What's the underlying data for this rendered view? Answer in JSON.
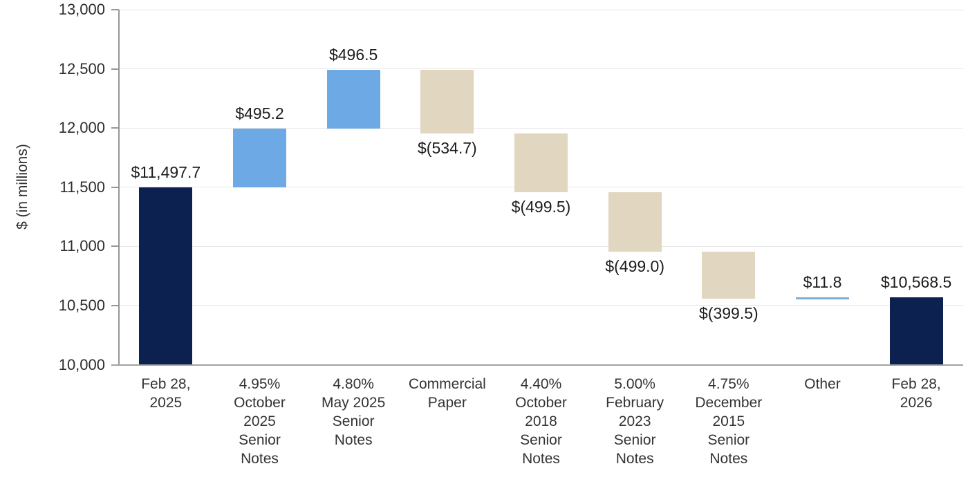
{
  "chart_data": {
    "type": "bar",
    "subtype": "waterfall",
    "title": "",
    "ylabel": "$ (in millions)",
    "ylim": [
      10000,
      13000
    ],
    "grid": true,
    "yticks": [
      {
        "value": 13000,
        "label": "13,000"
      },
      {
        "value": 12500,
        "label": "12,500"
      },
      {
        "value": 12000,
        "label": "12,000"
      },
      {
        "value": 11500,
        "label": "11,500"
      },
      {
        "value": 11000,
        "label": "11,000"
      },
      {
        "value": 10500,
        "label": "10,500"
      },
      {
        "value": 10000,
        "label": "10,000"
      }
    ],
    "colors": {
      "navy": "#0d2150",
      "blue": "#6ca9e5",
      "tan": "#e1d6c0",
      "other_line": "#7fadd2"
    },
    "bars": [
      {
        "category": "Feb 28, 2025",
        "label_lines": [
          "Feb 28,",
          "2025"
        ],
        "kind": "total",
        "value": 11497.7,
        "start": 10000,
        "end": 11497.7,
        "data_label": "$11,497.7",
        "label_position": "above",
        "color_key": "navy"
      },
      {
        "category": "4.95% October 2025 Senior Notes",
        "label_lines": [
          "4.95%",
          "October",
          "2025",
          "Senior",
          "Notes"
        ],
        "kind": "increase",
        "value": 495.2,
        "start": 11497.7,
        "end": 11992.9,
        "data_label": "$495.2",
        "label_position": "above",
        "color_key": "blue"
      },
      {
        "category": "4.80% May 2025 Senior Notes",
        "label_lines": [
          "4.80%",
          "May 2025",
          "Senior",
          "Notes"
        ],
        "kind": "increase",
        "value": 496.5,
        "start": 11992.9,
        "end": 12489.4,
        "data_label": "$496.5",
        "label_position": "above",
        "color_key": "blue"
      },
      {
        "category": "Commercial Paper",
        "label_lines": [
          "Commercial",
          "Paper"
        ],
        "kind": "decrease",
        "value": -534.7,
        "start": 12489.4,
        "end": 11954.7,
        "data_label": "$(534.7)",
        "label_position": "below",
        "color_key": "tan"
      },
      {
        "category": "4.40% October 2018 Senior Notes",
        "label_lines": [
          "4.40%",
          "October",
          "2018",
          "Senior",
          "Notes"
        ],
        "kind": "decrease",
        "value": -499.5,
        "start": 11954.7,
        "end": 11455.2,
        "data_label": "$(499.5)",
        "label_position": "below",
        "color_key": "tan"
      },
      {
        "category": "5.00% February 2023 Senior Notes",
        "label_lines": [
          "5.00%",
          "February",
          "2023",
          "Senior",
          "Notes"
        ],
        "kind": "decrease",
        "value": -499.0,
        "start": 11455.2,
        "end": 10956.2,
        "data_label": "$(499.0)",
        "label_position": "below",
        "color_key": "tan"
      },
      {
        "category": "4.75% December 2015 Senior Notes",
        "label_lines": [
          "4.75%",
          "December",
          "2015",
          "Senior",
          "Notes"
        ],
        "kind": "decrease",
        "value": -399.5,
        "start": 10956.2,
        "end": 10556.7,
        "data_label": "$(399.5)",
        "label_position": "below",
        "color_key": "tan"
      },
      {
        "category": "Other",
        "label_lines": [
          "Other"
        ],
        "kind": "increase",
        "value": 11.8,
        "start": 10556.7,
        "end": 10568.5,
        "data_label": "$11.8",
        "label_position": "above",
        "color_key": "other_line"
      },
      {
        "category": "Feb 28, 2026",
        "label_lines": [
          "Feb 28,",
          "2026"
        ],
        "kind": "total",
        "value": 10568.5,
        "start": 10000,
        "end": 10568.5,
        "data_label": "$10,568.5",
        "label_position": "above",
        "color_key": "navy"
      }
    ]
  }
}
